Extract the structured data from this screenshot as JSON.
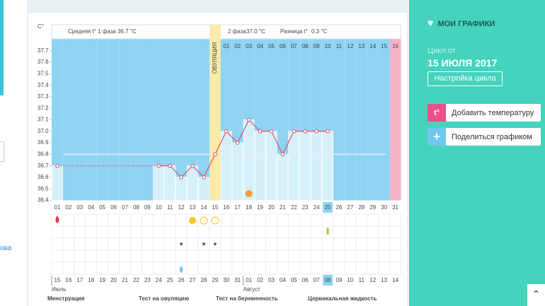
{
  "chart_data": {
    "type": "line",
    "y_unit": "C°",
    "header": {
      "phase1_label": "Средняя t° 1 фаза",
      "phase1_value": "36.7 °C",
      "phase2_label": "2 фаза",
      "phase2_value": "37.0 °C",
      "diff_label": "Разница t°",
      "diff_value": "0.3 °C"
    },
    "ovulation_label": "ОВУЛЯЦИЯ",
    "ovulation_day": 15,
    "categories": [
      "01",
      "02",
      "03",
      "04",
      "05",
      "06",
      "07",
      "08",
      "09",
      "10",
      "11",
      "12",
      "13",
      "14",
      "15",
      "16",
      "17",
      "18",
      "19",
      "20",
      "21",
      "22",
      "23",
      "24",
      "25",
      "26",
      "27",
      "28",
      "29",
      "30",
      "31"
    ],
    "values": [
      36.7,
      null,
      null,
      null,
      null,
      null,
      null,
      null,
      null,
      36.7,
      36.7,
      36.6,
      36.7,
      36.6,
      36.8,
      37.0,
      36.9,
      37.1,
      37.0,
      37.0,
      36.8,
      37.0,
      37.0,
      37.0,
      37.0,
      null,
      null,
      null,
      null,
      null,
      null
    ],
    "phase2_days": [
      "01",
      "02",
      "03",
      "04",
      "05",
      "06",
      "07",
      "08",
      "09",
      "10",
      "11",
      "12",
      "13",
      "14",
      "15",
      "16"
    ],
    "cover_line": 36.8,
    "current_day": 25,
    "ylim": [
      36.4,
      37.8
    ],
    "yticks": [
      36.4,
      36.5,
      36.6,
      36.7,
      36.8,
      36.9,
      {
        "value": 37,
        "label": "37.0"
      },
      37.1,
      37.2,
      37.3,
      37.4,
      37.5,
      37.6,
      37.7
    ],
    "line_color": "#e0506a",
    "bar_color": "#d5f0fb",
    "plot_color": "#8fd4f2",
    "dates": [
      "15",
      "16",
      "17",
      "18",
      "19",
      "20",
      "21",
      "22",
      "23",
      "24",
      "25",
      "26",
      "27",
      "28",
      "29",
      "30",
      "31",
      "01",
      "02",
      "03",
      "04",
      "05",
      "06",
      "07",
      "08",
      "09",
      "10",
      "11",
      "12",
      "13",
      "14"
    ],
    "weekend_dates": [
      0,
      1,
      7,
      8,
      14,
      15,
      21,
      22,
      28,
      29
    ],
    "months": [
      {
        "label": "Июль",
        "day": 1
      },
      {
        "label": "Август",
        "day": 18
      }
    ],
    "events": {
      "menstruation": [
        1
      ],
      "ovulation_test_positive": [
        13
      ],
      "ovulation_test_negative": [
        14,
        15
      ],
      "intercourse": [
        12,
        14,
        15
      ],
      "cervical_fluid": [
        12
      ],
      "pregnancy_test": [
        25
      ],
      "moon": [
        18
      ]
    },
    "legend": [
      "Менструация",
      "Тест на овуляцию",
      "Тест на беременность",
      "Цервикальная жидкость"
    ]
  },
  "sidebar": {
    "my_charts": "МОИ ГРАФИКИ",
    "cycle_from": "Цикл от",
    "cycle_date": "15 ИЮЛЯ 2017",
    "settings": "Настройка цикла",
    "add_temp": "Добавить температуру",
    "share": "Поделиться графиком"
  },
  "left": {
    "link": "ова"
  }
}
